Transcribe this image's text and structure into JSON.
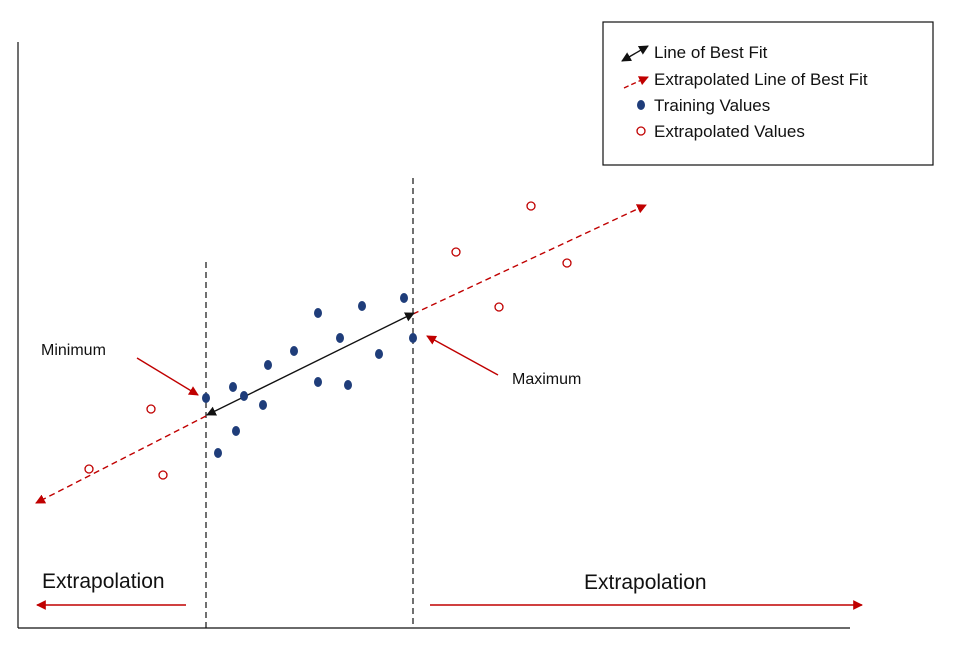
{
  "legend": {
    "items": [
      {
        "label": "Line of Best Fit",
        "icon": "double-arrow-icon",
        "color": "#111111"
      },
      {
        "label": "Extrapolated Line of Best Fit",
        "icon": "dashed-arrow-icon",
        "color": "#c00000"
      },
      {
        "label": "Training Values",
        "icon": "filled-dot-icon",
        "color": "#1f3d7a"
      },
      {
        "label": "Extrapolated Values",
        "icon": "hollow-circle-icon",
        "color": "#c00000"
      }
    ]
  },
  "callouts": {
    "minimum": "Minimum",
    "maximum": "Maximum"
  },
  "regions": {
    "left_label": "Extrapolation",
    "right_label": "Extrapolation"
  },
  "colors": {
    "training": "#1f3d7a",
    "extrapolated": "#c00000",
    "fit_line": "#111111",
    "axis": "#111111"
  }
}
